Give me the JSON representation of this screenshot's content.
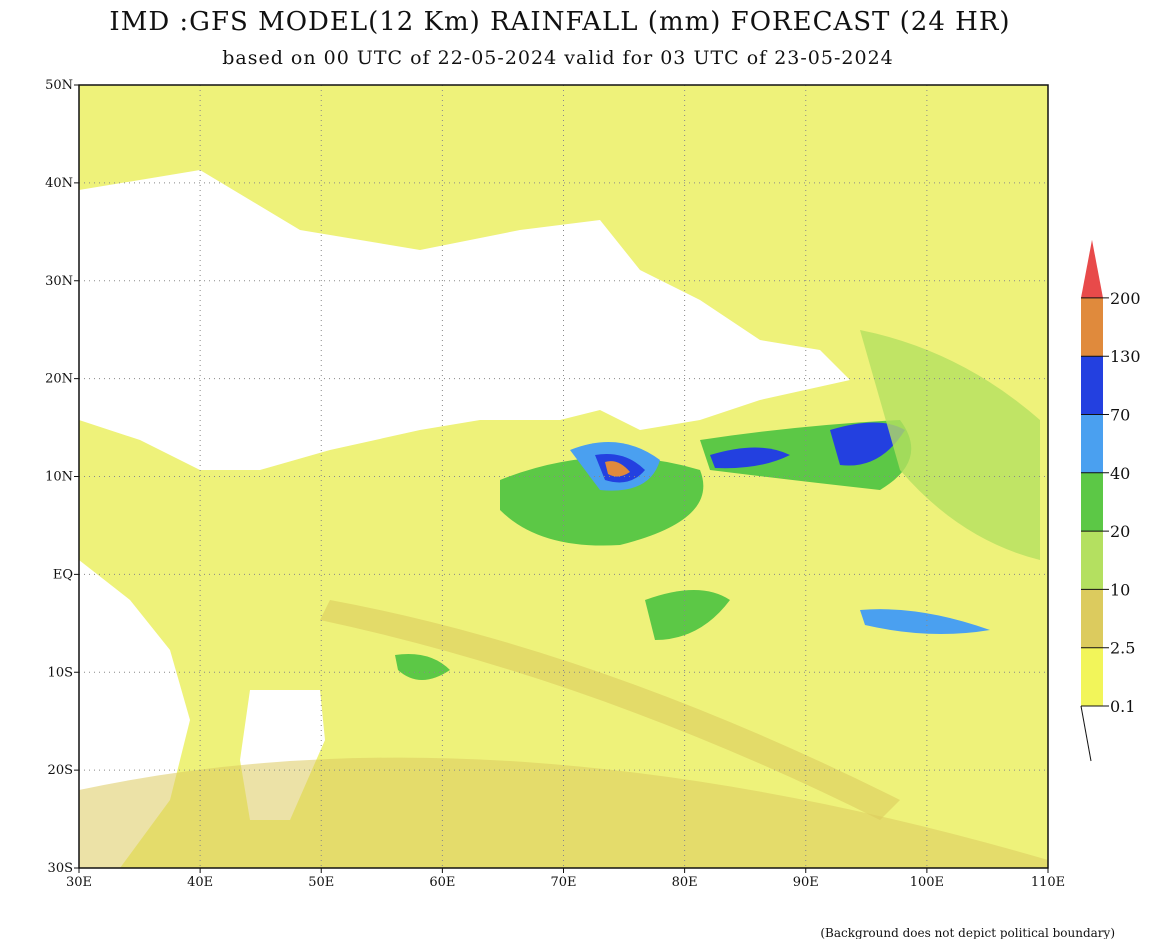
{
  "header": {
    "title": "IMD :GFS MODEL(12 Km) RAINFALL (mm) FORECAST (24 HR)",
    "subtitle": "based on 00 UTC of 22-05-2024 valid for 03 UTC of 23-05-2024"
  },
  "map": {
    "lon_labels": [
      "30E",
      "40E",
      "50E",
      "60E",
      "70E",
      "80E",
      "90E",
      "100E",
      "110E"
    ],
    "lat_labels": [
      "50N",
      "40N",
      "30N",
      "20N",
      "10N",
      "EQ",
      "10S",
      "20S",
      "30S"
    ]
  },
  "legend": {
    "levels": [
      0.1,
      2.5,
      10,
      20,
      40,
      70,
      130,
      200
    ],
    "colors": [
      "#f2f55a",
      "#dccb5e",
      "#b4e060",
      "#5cc846",
      "#4aa0f0",
      "#2340e0",
      "#e08a3c",
      "#e84a4a"
    ]
  },
  "footnote": "(Background does not depict political boundary)"
}
